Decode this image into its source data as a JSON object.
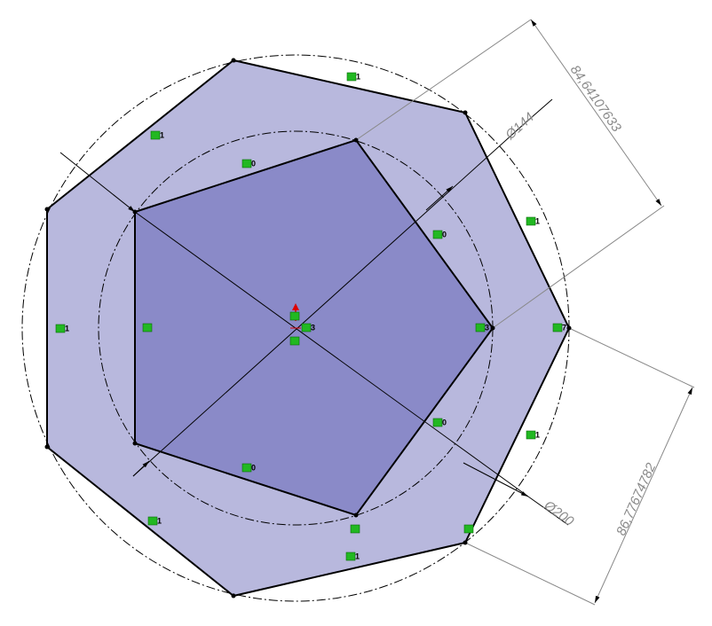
{
  "dimensions": {
    "inner_diameter": "Ø144",
    "outer_diameter": "Ø200",
    "pentagon_edge": "84,64107633",
    "heptagon_edge": "86,77674782"
  },
  "relations": [
    "1",
    "1",
    "0",
    "1",
    "0",
    "1",
    "3",
    "7",
    "3",
    "0",
    "1",
    "0",
    "1",
    "1"
  ]
}
